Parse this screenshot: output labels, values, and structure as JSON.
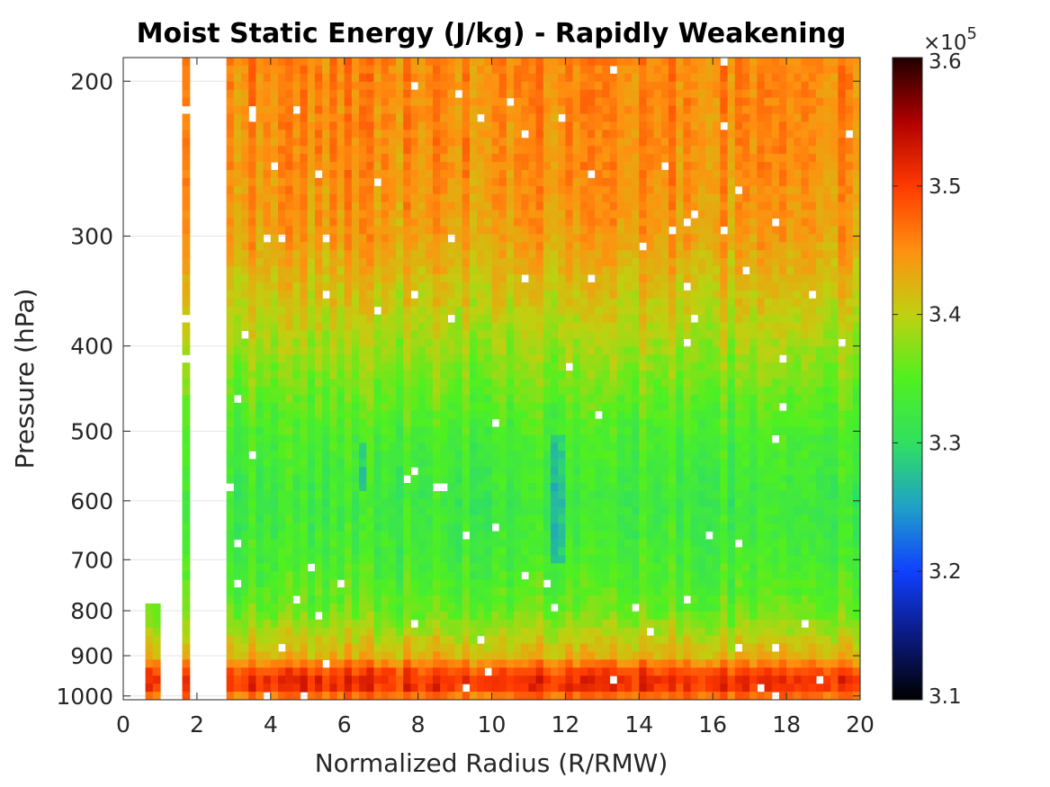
{
  "chart_data": {
    "type": "heatmap",
    "title": "Moist Static Energy (J/kg) - Rapidly Weakening",
    "xlabel": "Normalized Radius (R/RMW)",
    "ylabel": "Pressure (hPa)",
    "xlim": [
      0,
      20
    ],
    "ylim": [
      1010,
      188
    ],
    "y_scale": "log",
    "x_ticks": [
      0,
      2,
      4,
      6,
      8,
      10,
      12,
      14,
      16,
      18,
      20
    ],
    "y_ticks": [
      200,
      300,
      400,
      500,
      600,
      700,
      800,
      900,
      1000
    ],
    "grid": true,
    "colorbar": {
      "range": [
        310000,
        360000
      ],
      "ticks": [
        "3.1",
        "3.2",
        "3.3",
        "3.4",
        "3.5",
        "3.6"
      ],
      "exponent_label": "×10",
      "exponent_power": "5",
      "colormap": [
        "#000000",
        "#0b1a80",
        "#1040ff",
        "#20a0c8",
        "#30e060",
        "#50f020",
        "#c0d010",
        "#ff9010",
        "#ff3a00",
        "#b00000",
        "#200000"
      ]
    },
    "profile": {
      "description_pressure_hpa": [
        190,
        250,
        300,
        400,
        500,
        600,
        700,
        800,
        900,
        950,
        980,
        1005
      ],
      "mse_values": [
        345500,
        345000,
        344000,
        338500,
        334000,
        332500,
        333500,
        336000,
        342500,
        351000,
        350500,
        346000
      ]
    },
    "missing_columns_r": [
      1.2,
      1.4,
      2.0,
      2.3,
      2.6
    ],
    "data_start_r": 0.6
  }
}
